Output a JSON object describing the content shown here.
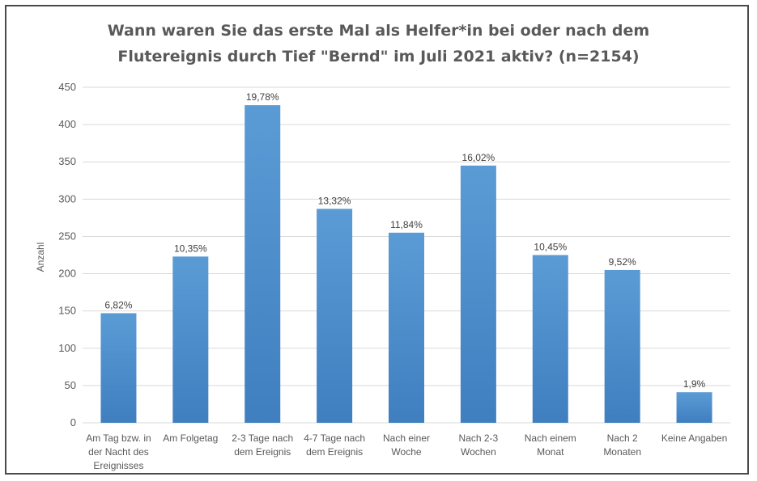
{
  "chart_data": {
    "type": "bar",
    "title_lines": [
      "Wann waren Sie das erste Mal als Helfer*in bei oder nach dem",
      "Flutereignis durch Tief \"Bernd\" im Juli 2021 aktiv? (n=2154)"
    ],
    "ylabel": "Anzahl",
    "xlabel": "",
    "ylim": [
      0,
      450
    ],
    "yticks": [
      0,
      50,
      100,
      150,
      200,
      250,
      300,
      350,
      400,
      450
    ],
    "grid": true,
    "categories": [
      [
        "Am Tag bzw. in",
        "der Nacht des",
        "Ereignisses"
      ],
      [
        "Am Folgetag"
      ],
      [
        "2-3 Tage nach",
        "dem Ereignis"
      ],
      [
        "4-7 Tage nach",
        "dem Ereignis"
      ],
      [
        "Nach einer",
        "Woche"
      ],
      [
        "Nach 2-3",
        "Wochen"
      ],
      [
        "Nach einem",
        "Monat"
      ],
      [
        "Nach 2",
        "Monaten"
      ],
      [
        "Keine Angaben"
      ]
    ],
    "values": [
      147,
      223,
      426,
      287,
      255,
      345,
      225,
      205,
      41
    ],
    "data_labels": [
      "6,82%",
      "10,35%",
      "19,78%",
      "13,32%",
      "11,84%",
      "16,02%",
      "10,45%",
      "9,52%",
      "1,9%"
    ],
    "bar_color": "#5b9bd5",
    "bar_color_dark": "#3f7fc0",
    "grid_color": "#d9d9d9",
    "frame_color": "#4a4a4a"
  }
}
